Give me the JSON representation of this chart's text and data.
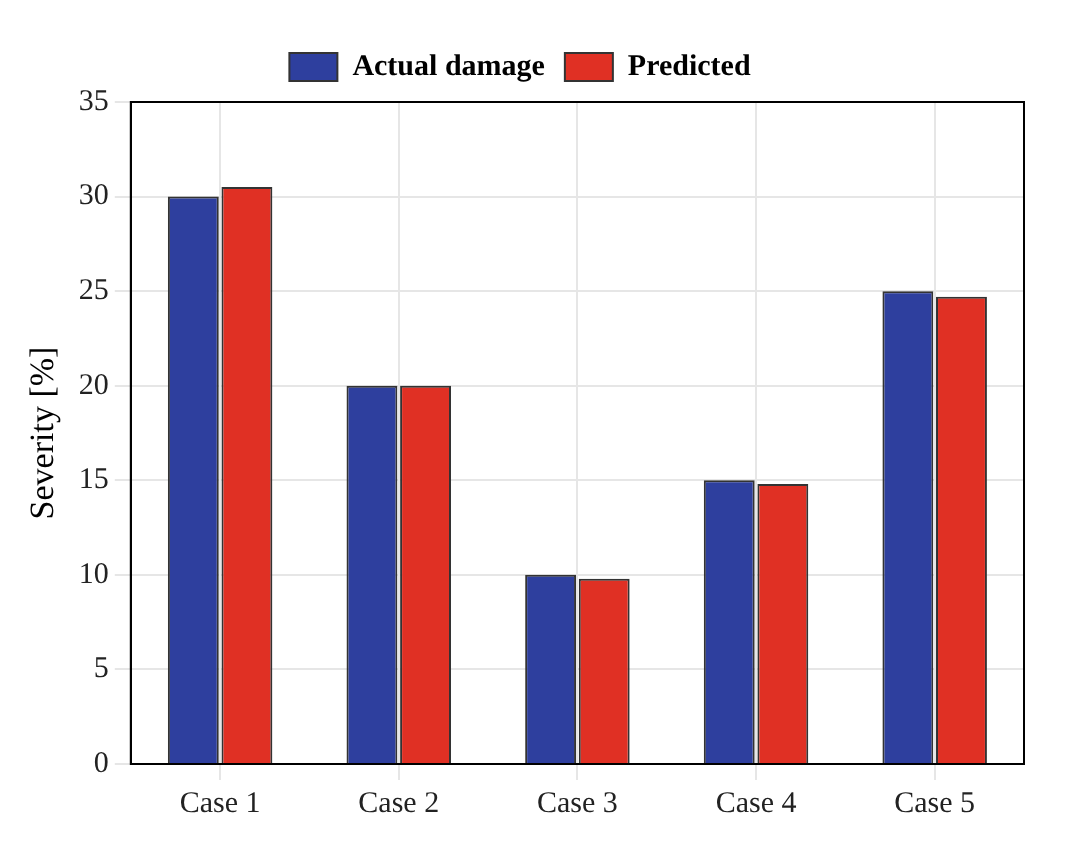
{
  "chart_data": {
    "type": "bar",
    "ylabel": "Severity [%]",
    "categories": [
      "Case 1",
      "Case 2",
      "Case 3",
      "Case 4",
      "Case 5"
    ],
    "series": [
      {
        "name": "Actual damage",
        "color": "#2e3f9e",
        "values": [
          30,
          20,
          10,
          15,
          25
        ]
      },
      {
        "name": "Predicted",
        "color": "#e03024",
        "values": [
          30.5,
          20,
          9.8,
          14.8,
          24.7
        ]
      }
    ],
    "ylim": [
      0,
      35
    ],
    "yticks": [
      0,
      5,
      10,
      15,
      20,
      25,
      30,
      35
    ],
    "grid": true,
    "legend": "top"
  }
}
